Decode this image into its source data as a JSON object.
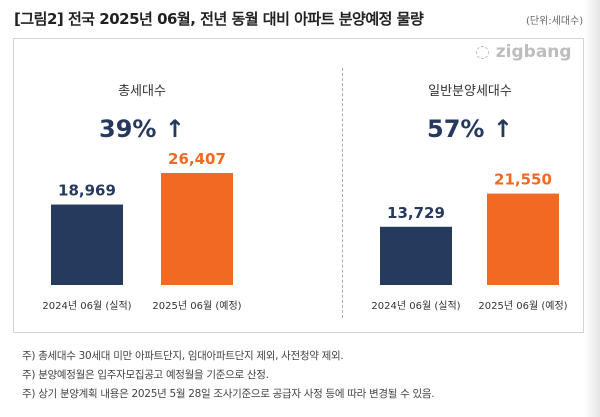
{
  "title": "[그림2] 전국 2025년 06월, 전년 동월 대비 아파트 분양예정 물량",
  "unit": "(단위:세대수)",
  "logo": "zigbang",
  "colors": {
    "actual": "#263a5e",
    "planned": "#f26a21"
  },
  "chart_data": [
    {
      "type": "bar",
      "title": "총세대수",
      "change": "39% ↑",
      "categories": [
        "2024년 06월 (실적)",
        "2025년 06월 (예정)"
      ],
      "values": [
        18969,
        26407
      ],
      "value_labels": [
        "18,969",
        "26,407"
      ]
    },
    {
      "type": "bar",
      "title": "일반분양세대수",
      "change": "57% ↑",
      "categories": [
        "2024년 06월 (실적)",
        "2025년 06월 (예정)"
      ],
      "values": [
        13729,
        21550
      ],
      "value_labels": [
        "13,729",
        "21,550"
      ]
    }
  ],
  "notes": [
    "주) 총세대수 30세대 미만 아파트단지, 임대아파트단지 제외, 사전청약 제외.",
    "주) 분양예정월은 입주자모집공고 예정월을 기준으로 산정.",
    "주) 상기 분양계획 내용은 2025년 5월  28일  조사기준으로 공급자 사정 등에 따라 변경될 수 있음."
  ]
}
